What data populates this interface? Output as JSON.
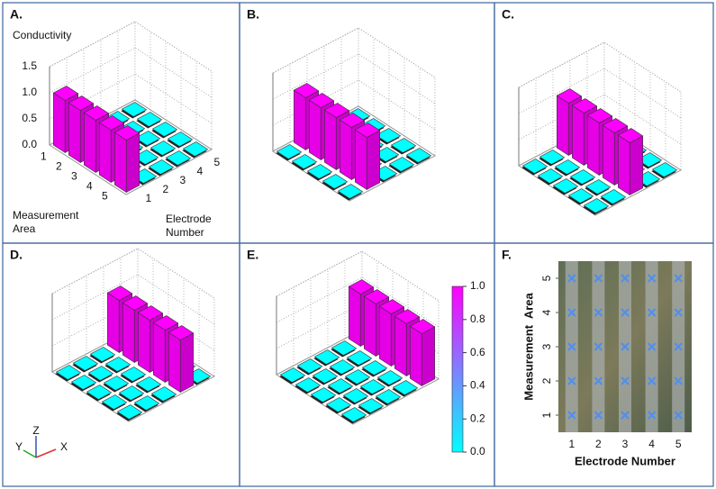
{
  "chart_data": [
    {
      "type": "bar3d",
      "label": "A.",
      "z_label": "Conductivity",
      "y_label": "Measurement Area",
      "x_label": "Electrode Number",
      "x_categories": [
        1,
        2,
        3,
        4,
        5
      ],
      "y_categories": [
        1,
        2,
        3,
        4,
        5
      ],
      "values": [
        [
          1,
          0,
          0,
          0,
          0
        ],
        [
          1,
          0,
          0,
          0,
          0
        ],
        [
          1,
          0,
          0,
          0,
          0
        ],
        [
          1,
          0,
          0,
          0,
          0
        ],
        [
          1,
          0,
          0,
          0,
          0
        ]
      ],
      "zlim": [
        0,
        1.5
      ],
      "zticks": [
        {
          "value": 0,
          "label": "0.0"
        },
        {
          "value": 0.5,
          "label": "0.5"
        },
        {
          "value": 1,
          "label": "1.0"
        },
        {
          "value": 1.5,
          "label": "1.5"
        }
      ]
    },
    {
      "type": "bar3d",
      "label": "B.",
      "values": [
        [
          0,
          1,
          0,
          0,
          0
        ],
        [
          0,
          1,
          0,
          0,
          0
        ],
        [
          0,
          1,
          0,
          0,
          0
        ],
        [
          0,
          1,
          0,
          0,
          0
        ],
        [
          0,
          1,
          0,
          0,
          0
        ]
      ]
    },
    {
      "type": "bar3d",
      "label": "C.",
      "values": [
        [
          0,
          0,
          1,
          0,
          0
        ],
        [
          0,
          0,
          1,
          0,
          0
        ],
        [
          0,
          0,
          1,
          0,
          0
        ],
        [
          0,
          0,
          1,
          0,
          0
        ],
        [
          0,
          0,
          1,
          0,
          0
        ]
      ]
    },
    {
      "type": "bar3d",
      "label": "D.",
      "axes_triad": [
        "X",
        "Y",
        "Z"
      ],
      "values": [
        [
          0,
          0,
          0,
          1,
          0
        ],
        [
          0,
          0,
          0,
          1,
          0
        ],
        [
          0,
          0,
          0,
          1,
          0
        ],
        [
          0,
          0,
          0,
          1,
          0
        ],
        [
          0,
          0,
          0,
          1,
          0
        ]
      ]
    },
    {
      "type": "bar3d",
      "label": "E.",
      "values": [
        [
          0,
          0,
          0,
          0,
          1
        ],
        [
          0,
          0,
          0,
          0,
          1
        ],
        [
          0,
          0,
          0,
          0,
          1
        ],
        [
          0,
          0,
          0,
          0,
          1
        ],
        [
          0,
          0,
          0,
          0,
          1
        ]
      ],
      "colorbar": {
        "lim": [
          0,
          1
        ],
        "colors": [
          "#00ffff",
          "#ff00ff"
        ],
        "ticks": [
          {
            "value": 0,
            "label": "0.0"
          },
          {
            "value": 0.2,
            "label": "0.2"
          },
          {
            "value": 0.4,
            "label": "0.4"
          },
          {
            "value": 0.6,
            "label": "0.6"
          },
          {
            "value": 0.8,
            "label": "0.8"
          },
          {
            "value": 1,
            "label": "1.0"
          }
        ]
      }
    },
    {
      "type": "scatter",
      "label": "F.",
      "x_label": "Electrode Number",
      "y_label": "Measurement  Area",
      "color": "#4f8ff0",
      "x": [
        1,
        2,
        3,
        4,
        5,
        1,
        2,
        3,
        4,
        5,
        1,
        2,
        3,
        4,
        5,
        1,
        2,
        3,
        4,
        5,
        1,
        2,
        3,
        4,
        5
      ],
      "y": [
        1,
        1,
        1,
        1,
        1,
        2,
        2,
        2,
        2,
        2,
        3,
        3,
        3,
        3,
        3,
        4,
        4,
        4,
        4,
        4,
        5,
        5,
        5,
        5,
        5
      ],
      "xlim": [
        0.5,
        5.5
      ],
      "ylim": [
        0.5,
        5.5
      ],
      "xticks": [
        1,
        2,
        3,
        4,
        5
      ],
      "yticks": [
        1,
        2,
        3,
        4,
        5
      ]
    }
  ]
}
